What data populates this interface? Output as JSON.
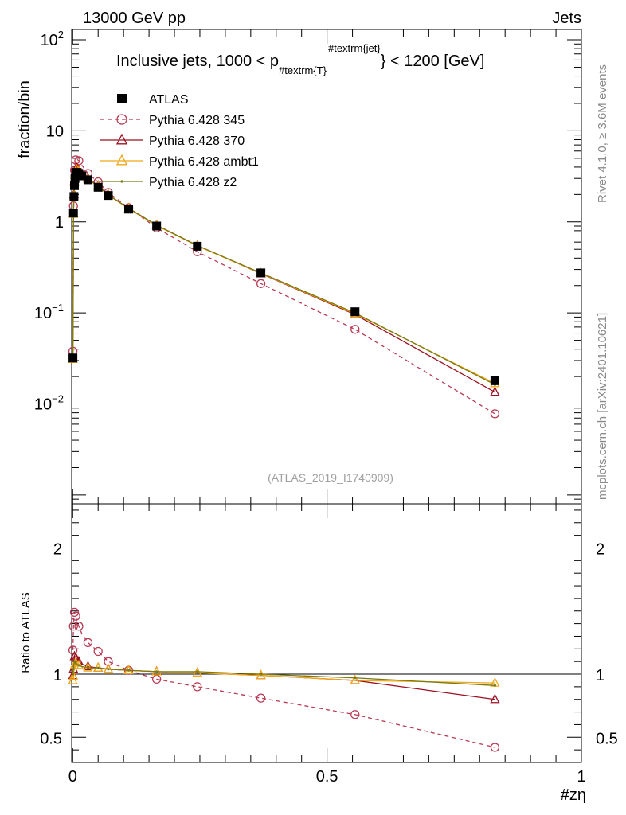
{
  "header": {
    "left": "13000 GeV pp",
    "right": "Jets"
  },
  "side_labels": {
    "right_top": "Rivet 4.1.0, ≥ 3.6M events",
    "right_bottom": "mcplots.cern.ch [arXiv:2401.10621]"
  },
  "chart_data": [
    {
      "panel": "main",
      "type": "line",
      "title": "Inclusive jets, 1000 < p_{#textrm{T}}^{#textrm{jet}} < 1200 [GeV]",
      "title_parts": {
        "pre": "Inclusive jets, 1000 < p",
        "sub": "#textrm{T}",
        "sup": "#textrm{jet}",
        "post": "} < 1200 [GeV]"
      },
      "ylabel": "fraction/bin",
      "yscale": "log",
      "ylim": [
        0.0008,
        130
      ],
      "xlim": [
        -0.002,
        1.0
      ],
      "ytick_labels": [
        {
          "value": 100,
          "base": "10",
          "exp": "2"
        },
        {
          "value": 10,
          "base": "10",
          "exp": ""
        },
        {
          "value": 1,
          "base": "1",
          "exp": ""
        },
        {
          "value": 0.1,
          "base": "10",
          "exp": "−1"
        },
        {
          "value": 0.01,
          "base": "10",
          "exp": "−2"
        }
      ],
      "watermark": "(ATLAS_2019_I1740909)",
      "legend": [
        {
          "name": "ATLAS",
          "marker": "square",
          "color": "#000000",
          "dash": ""
        },
        {
          "name": "Pythia 6.428 345",
          "marker": "circle",
          "color": "#b83b55",
          "dash": "5,4"
        },
        {
          "name": "Pythia 6.428 370",
          "marker": "triangle",
          "color": "#9b1020",
          "dash": ""
        },
        {
          "name": "Pythia 6.428 ambt1",
          "marker": "triangle",
          "color": "#f0a818",
          "dash": ""
        },
        {
          "name": "Pythia 6.428 z2",
          "marker": "dot",
          "color": "#7a7a10",
          "dash": ""
        }
      ],
      "series": [
        {
          "name": "ATLAS",
          "x": [
            0.0005,
            0.0015,
            0.0025,
            0.0035,
            0.0045,
            0.006,
            0.008,
            0.012,
            0.018,
            0.03,
            0.05,
            0.07,
            0.11,
            0.165,
            0.245,
            0.37,
            0.555,
            0.83
          ],
          "y": [
            0.032,
            1.25,
            1.9,
            2.5,
            3.0,
            3.3,
            3.5,
            3.4,
            3.2,
            2.9,
            2.4,
            1.95,
            1.38,
            0.9,
            0.54,
            0.275,
            0.103,
            0.018
          ]
        },
        {
          "name": "Pythia 6.428 345",
          "x": [
            0.0005,
            0.0015,
            0.0025,
            0.0035,
            0.0045,
            0.006,
            0.008,
            0.012,
            0.018,
            0.03,
            0.05,
            0.07,
            0.11,
            0.165,
            0.245,
            0.37,
            0.555,
            0.83
          ],
          "y": [
            0.038,
            1.5,
            2.7,
            3.7,
            4.4,
            4.8,
            4.9,
            4.7,
            4.2,
            3.4,
            2.75,
            2.1,
            1.43,
            0.86,
            0.47,
            0.21,
            0.066,
            0.0078
          ]
        },
        {
          "name": "Pythia 6.428 370",
          "x": [
            0.0005,
            0.0015,
            0.0025,
            0.0035,
            0.0045,
            0.006,
            0.008,
            0.012,
            0.018,
            0.03,
            0.05,
            0.07,
            0.11,
            0.165,
            0.245,
            0.37,
            0.555,
            0.83
          ],
          "y": [
            0.031,
            1.25,
            2.0,
            2.8,
            3.4,
            3.75,
            3.9,
            3.7,
            3.4,
            3.0,
            2.5,
            1.98,
            1.41,
            0.92,
            0.55,
            0.27,
            0.096,
            0.0135
          ]
        },
        {
          "name": "Pythia 6.428 ambt1",
          "x": [
            0.0005,
            0.0015,
            0.0025,
            0.0035,
            0.0045,
            0.006,
            0.008,
            0.012,
            0.018,
            0.03,
            0.05,
            0.07,
            0.11,
            0.165,
            0.245,
            0.37,
            0.555,
            0.83
          ],
          "y": [
            0.031,
            1.22,
            1.95,
            2.7,
            3.25,
            3.6,
            3.75,
            3.6,
            3.35,
            2.95,
            2.45,
            1.97,
            1.4,
            0.91,
            0.545,
            0.272,
            0.098,
            0.0168
          ]
        },
        {
          "name": "Pythia 6.428 z2",
          "x": [
            0.0005,
            0.0015,
            0.0025,
            0.0035,
            0.0045,
            0.006,
            0.008,
            0.012,
            0.018,
            0.03,
            0.05,
            0.07,
            0.11,
            0.165,
            0.245,
            0.37,
            0.555,
            0.83
          ],
          "y": [
            0.031,
            1.3,
            2.05,
            2.75,
            3.3,
            3.6,
            3.75,
            3.6,
            3.35,
            2.95,
            2.45,
            1.98,
            1.41,
            0.92,
            0.55,
            0.275,
            0.1,
            0.0163
          ]
        }
      ]
    },
    {
      "panel": "ratio",
      "type": "line",
      "ylabel": "Ratio to ATLAS",
      "xlabel": "#zη",
      "ylim": [
        0.3,
        2.35
      ],
      "xlim": [
        -0.002,
        1.0
      ],
      "yticks": [
        0.5,
        1,
        2
      ],
      "ytick_labels": [
        "0.5",
        "1",
        "2"
      ],
      "xticks": [
        0,
        0.5,
        1
      ],
      "xtick_labels": [
        "0",
        "0.5",
        "1"
      ],
      "reference": 1,
      "series": [
        {
          "name": "Pythia 6.428 345",
          "x": [
            0.0005,
            0.0015,
            0.0025,
            0.0035,
            0.0045,
            0.006,
            0.008,
            0.012,
            0.018,
            0.03,
            0.05,
            0.07,
            0.11,
            0.165,
            0.245,
            0.37,
            0.555,
            0.83
          ],
          "y": [
            1.19,
            1.38,
            1.45,
            1.49,
            1.48,
            1.46,
            1.42,
            1.38,
            1.32,
            1.25,
            1.18,
            1.1,
            1.03,
            0.96,
            0.9,
            0.81,
            0.68,
            0.42
          ]
        },
        {
          "name": "Pythia 6.428 370",
          "x": [
            0.0005,
            0.0015,
            0.0025,
            0.0035,
            0.0045,
            0.006,
            0.008,
            0.012,
            0.018,
            0.03,
            0.05,
            0.07,
            0.11,
            0.165,
            0.245,
            0.37,
            0.555,
            0.83
          ],
          "y": [
            0.99,
            1.04,
            1.1,
            1.14,
            1.14,
            1.13,
            1.12,
            1.1,
            1.08,
            1.06,
            1.05,
            1.04,
            1.03,
            1.02,
            1.01,
            0.99,
            0.95,
            0.8
          ]
        },
        {
          "name": "Pythia 6.428 ambt1",
          "x": [
            0.0005,
            0.0015,
            0.0025,
            0.0035,
            0.0045,
            0.006,
            0.008,
            0.012,
            0.018,
            0.03,
            0.05,
            0.07,
            0.11,
            0.165,
            0.245,
            0.37,
            0.555,
            0.83
          ],
          "y": [
            0.95,
            0.98,
            1.02,
            1.07,
            1.08,
            1.09,
            1.08,
            1.07,
            1.06,
            1.05,
            1.05,
            1.04,
            1.03,
            1.02,
            1.01,
            0.99,
            0.95,
            0.93
          ]
        },
        {
          "name": "Pythia 6.428 z2",
          "x": [
            0.0005,
            0.0015,
            0.0025,
            0.0035,
            0.0045,
            0.006,
            0.008,
            0.012,
            0.018,
            0.03,
            0.05,
            0.07,
            0.11,
            0.165,
            0.245,
            0.37,
            0.555,
            0.83
          ],
          "y": [
            1.0,
            1.04,
            1.08,
            1.1,
            1.1,
            1.09,
            1.08,
            1.07,
            1.06,
            1.05,
            1.05,
            1.04,
            1.03,
            1.02,
            1.02,
            1.0,
            0.97,
            0.91
          ]
        }
      ]
    }
  ]
}
